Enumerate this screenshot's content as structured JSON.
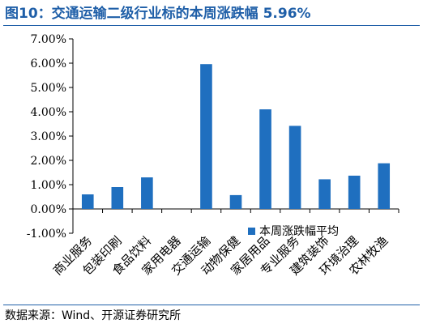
{
  "title": "图10：交通运输二级行业标的本周涨跌幅 5.96%",
  "source": "数据来源：Wind、开源证券研究所",
  "colors": {
    "bar": "#1f6fbf",
    "title": "#1f5fa8"
  },
  "chart_data": {
    "type": "bar",
    "categories": [
      "商业服务",
      "包装印刷",
      "食品饮料",
      "家用电器",
      "交通运输",
      "动物保健",
      "家居用品",
      "专业服务",
      "建筑装饰",
      "环境治理",
      "农林牧渔"
    ],
    "series": [
      {
        "name": "本周涨跌幅平均",
        "values": [
          0.6,
          0.9,
          1.3,
          null,
          5.96,
          0.57,
          4.1,
          3.42,
          1.22,
          1.37,
          1.88
        ]
      }
    ],
    "y_ticks": [
      "7.00%",
      "6.00%",
      "5.00%",
      "4.00%",
      "3.00%",
      "2.00%",
      "1.00%",
      "0.00%",
      "-1.00%"
    ],
    "ylim": [
      -1,
      7
    ],
    "y_unit": "%",
    "legend_position": "lower-right",
    "grid": false
  }
}
